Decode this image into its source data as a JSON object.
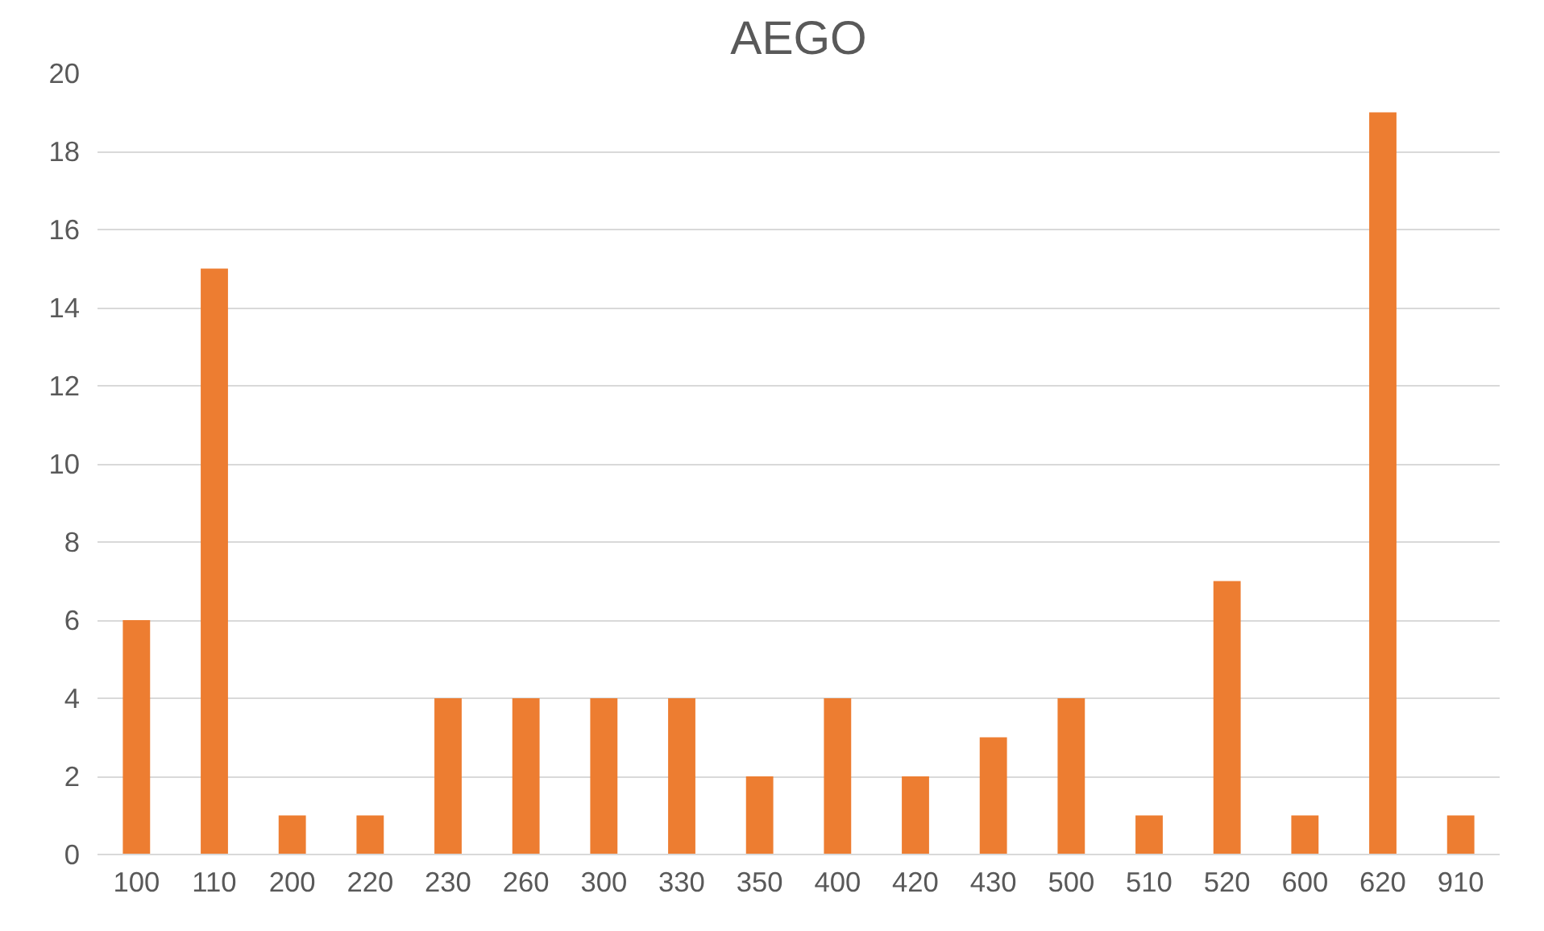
{
  "chart_data": {
    "type": "bar",
    "title": "AEGO",
    "categories": [
      "100",
      "110",
      "200",
      "220",
      "230",
      "260",
      "300",
      "330",
      "350",
      "400",
      "420",
      "430",
      "500",
      "510",
      "520",
      "600",
      "620",
      "910"
    ],
    "values": [
      6,
      15,
      1,
      1,
      4,
      4,
      4,
      4,
      2,
      4,
      2,
      3,
      4,
      1,
      7,
      1,
      19,
      1
    ],
    "color": "#ed7d31",
    "ylim": [
      0,
      20
    ],
    "yticks": [
      0,
      2,
      4,
      6,
      8,
      10,
      12,
      14,
      16,
      18,
      20
    ],
    "grid": "y"
  }
}
